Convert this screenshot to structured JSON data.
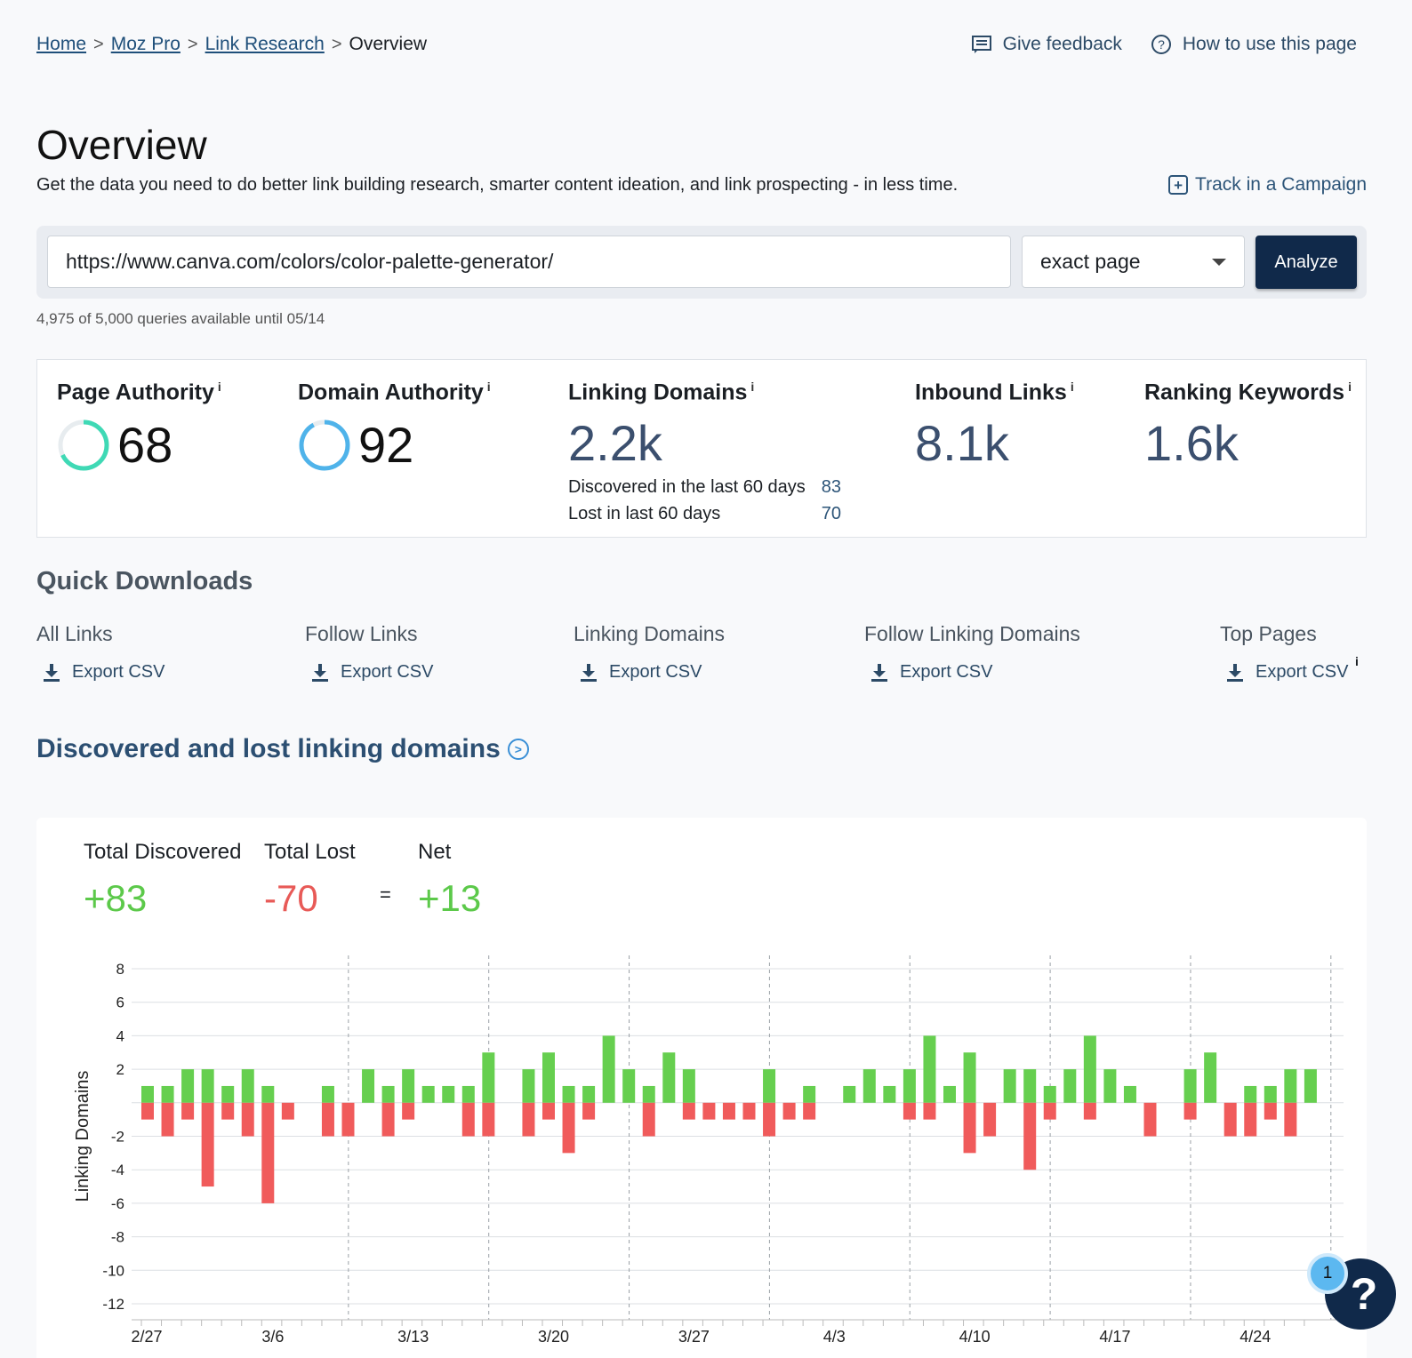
{
  "breadcrumb": {
    "items": [
      "Home",
      "Moz Pro",
      "Link Research"
    ],
    "current": "Overview"
  },
  "header": {
    "feedback_label": "Give feedback",
    "howto_label": "How to use this page"
  },
  "page": {
    "title": "Overview",
    "description": "Get the data you need to do better link building research, smarter content ideation, and link prospecting - in less time.",
    "track_label": "Track in a Campaign"
  },
  "search": {
    "url_value": "https://www.canva.com/colors/color-palette-generator/",
    "scope_value": "exact page",
    "analyze_label": "Analyze",
    "quota_text": "4,975 of 5,000 queries available until 05/14"
  },
  "metrics": {
    "page_authority": {
      "label": "Page Authority",
      "info": "i",
      "value": "68",
      "gauge_fraction": 0.68,
      "gauge_color": "#3fd9b5"
    },
    "domain_authority": {
      "label": "Domain Authority",
      "info": "i",
      "value": "92",
      "gauge_fraction": 0.92,
      "gauge_color": "#4fb3ea"
    },
    "linking_domains": {
      "label": "Linking Domains",
      "info": "i",
      "value": "2.2k",
      "discovered_label": "Discovered in the last 60 days",
      "discovered_value": "83",
      "lost_label": "Lost in last 60 days",
      "lost_value": "70"
    },
    "inbound_links": {
      "label": "Inbound Links",
      "info": "i",
      "value": "8.1k"
    },
    "ranking_keywords": {
      "label": "Ranking Keywords",
      "info": "i",
      "value": "1.6k"
    }
  },
  "quick_downloads": {
    "title": "Quick Downloads",
    "export_label": "Export CSV",
    "info": "i",
    "columns": [
      "All Links",
      "Follow Links",
      "Linking Domains",
      "Follow Linking Domains",
      "Top Pages"
    ]
  },
  "section": {
    "title": "Discovered and lost linking domains"
  },
  "totals": {
    "discovered_label": "Total Discovered",
    "discovered_value": "+83",
    "lost_label": "Total Lost",
    "lost_value": "-70",
    "equals": "=",
    "net_label": "Net",
    "net_value": "+13"
  },
  "chart_data": {
    "type": "bar",
    "ylabel": "Linking Domains",
    "ylim": [
      -12,
      8
    ],
    "yticks": [
      8,
      6,
      4,
      2,
      -2,
      -4,
      -6,
      -8,
      -10,
      -12
    ],
    "xticks": [
      "2/27",
      "3/6",
      "3/13",
      "3/20",
      "3/27",
      "4/3",
      "4/10",
      "4/17",
      "4/24"
    ],
    "colors": {
      "discovered": "#66cf4f",
      "lost": "#f05b5b"
    },
    "series": [
      {
        "name": "discovered",
        "values": [
          1,
          1,
          2,
          2,
          1,
          2,
          1,
          0,
          0,
          1,
          0,
          2,
          1,
          2,
          1,
          1,
          1,
          3,
          0,
          2,
          3,
          1,
          1,
          4,
          2,
          1,
          3,
          2,
          0,
          0,
          0,
          2,
          0,
          1,
          0,
          1,
          2,
          1,
          2,
          4,
          1,
          3,
          0,
          2,
          2,
          1,
          2,
          4,
          2,
          1,
          0,
          0,
          2,
          3,
          0,
          1,
          1,
          2,
          2
        ]
      },
      {
        "name": "lost",
        "values": [
          -1,
          -2,
          -1,
          -5,
          -1,
          -2,
          -6,
          -1,
          0,
          -2,
          -2,
          0,
          -2,
          -1,
          0,
          0,
          -2,
          -2,
          0,
          -2,
          -1,
          -3,
          -1,
          0,
          0,
          -2,
          0,
          -1,
          -1,
          -1,
          -1,
          -2,
          -1,
          -1,
          0,
          0,
          0,
          0,
          -1,
          -1,
          0,
          -3,
          -2,
          0,
          -4,
          -1,
          0,
          -1,
          0,
          0,
          -2,
          0,
          -1,
          0,
          -2,
          -2,
          -1,
          -2,
          0
        ]
      }
    ]
  },
  "help": {
    "icon_label": "?",
    "badge_count": "1"
  }
}
